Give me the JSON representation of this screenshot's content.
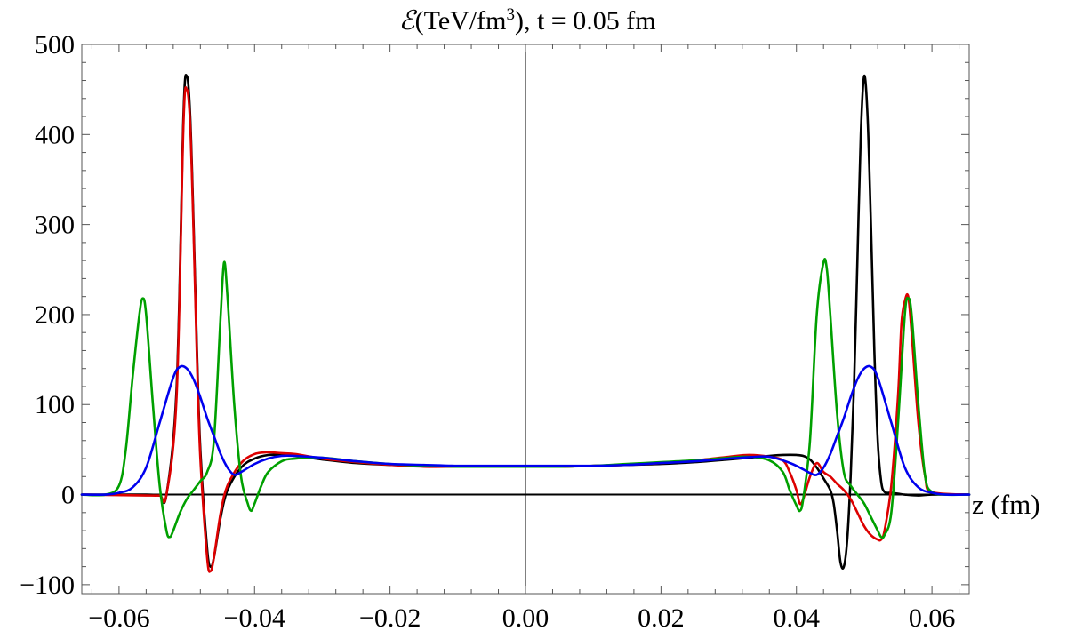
{
  "chart_data": {
    "type": "line",
    "title_prefix": "(TeV/fm",
    "title_symbol": "ℰ",
    "title_sup": "3",
    "title_suffix": "), t = 0.05 fm",
    "xlabel": "z (fm)",
    "ylabel": "",
    "xlim": [
      -0.0655,
      0.0655
    ],
    "ylim": [
      -110,
      500
    ],
    "xticks": [
      -0.06,
      -0.04,
      -0.02,
      0.0,
      0.02,
      0.04,
      0.06
    ],
    "xtick_labels": [
      "−0.06",
      "−0.04",
      "−0.02",
      "0.00",
      "0.02",
      "0.04",
      "0.06"
    ],
    "yticks": [
      -100,
      0,
      100,
      200,
      300,
      400,
      500
    ],
    "ytick_labels": [
      "−100",
      "0",
      "100",
      "200",
      "300",
      "400",
      "500"
    ],
    "grid": false,
    "legend": "none",
    "series": [
      {
        "color": "#000000",
        "x": [
          -0.0655,
          -0.056,
          -0.054,
          -0.053,
          -0.0515,
          -0.0505,
          -0.05,
          -0.0495,
          -0.049,
          -0.0485,
          -0.048,
          -0.047,
          -0.0465,
          -0.046,
          -0.045,
          -0.044,
          -0.042,
          -0.04,
          -0.038,
          -0.036,
          -0.034,
          -0.03,
          -0.025,
          -0.02,
          -0.015,
          -0.01,
          -0.005,
          0.0,
          0.005,
          0.01,
          0.015,
          0.02,
          0.025,
          0.03,
          0.033,
          0.036,
          0.038,
          0.04,
          0.041,
          0.042,
          0.043,
          0.044,
          0.045,
          0.0455,
          0.046,
          0.0465,
          0.047,
          0.0475,
          0.048,
          0.0485,
          0.049,
          0.0495,
          0.05,
          0.0505,
          0.051,
          0.0515,
          0.052,
          0.0525,
          0.053,
          0.054,
          0.055,
          0.056,
          0.058,
          0.06,
          0.0655
        ],
        "y": [
          0,
          0,
          -1,
          0,
          120,
          420,
          465,
          420,
          300,
          160,
          50,
          -60,
          -80,
          -70,
          -25,
          5,
          30,
          40,
          44,
          44,
          43,
          39,
          35,
          33,
          32,
          31,
          31,
          31,
          31,
          32,
          33,
          34,
          36,
          39,
          41,
          43,
          44,
          44,
          43,
          39,
          30,
          18,
          5,
          -10,
          -40,
          -75,
          -80,
          -50,
          20,
          120,
          260,
          400,
          465,
          420,
          300,
          160,
          60,
          15,
          3,
          2,
          1,
          0,
          -1,
          0,
          0
        ]
      },
      {
        "color": "#dd0000",
        "x": [
          -0.0655,
          -0.056,
          -0.054,
          -0.053,
          -0.0515,
          -0.0505,
          -0.05,
          -0.0495,
          -0.049,
          -0.0485,
          -0.048,
          -0.047,
          -0.0465,
          -0.046,
          -0.045,
          -0.044,
          -0.042,
          -0.04,
          -0.038,
          -0.036,
          -0.034,
          -0.03,
          -0.025,
          -0.02,
          -0.015,
          -0.01,
          -0.005,
          0.0,
          0.005,
          0.01,
          0.015,
          0.02,
          0.025,
          0.03,
          0.033,
          0.036,
          0.038,
          0.039,
          0.04,
          0.0405,
          0.041,
          0.042,
          0.043,
          0.044,
          0.045,
          0.046,
          0.047,
          0.048,
          0.049,
          0.05,
          0.051,
          0.052,
          0.0525,
          0.053,
          0.054,
          0.055,
          0.0555,
          0.056,
          0.0565,
          0.057,
          0.058,
          0.059,
          0.06,
          0.0655
        ],
        "y": [
          0,
          -1,
          -1,
          0,
          110,
          410,
          450,
          410,
          290,
          150,
          40,
          -70,
          -85,
          -70,
          -20,
          10,
          35,
          45,
          47,
          46,
          45,
          40,
          36,
          33,
          31,
          31,
          31,
          31,
          31,
          32,
          33,
          35,
          38,
          42,
          44,
          42,
          38,
          25,
          5,
          -10,
          -5,
          20,
          35,
          25,
          20,
          12,
          5,
          -5,
          -20,
          -35,
          -45,
          -50,
          -50,
          -40,
          10,
          110,
          190,
          215,
          220,
          180,
          80,
          20,
          3,
          0
        ]
      },
      {
        "color": "#00a000",
        "x": [
          -0.0655,
          -0.062,
          -0.06,
          -0.059,
          -0.058,
          -0.057,
          -0.0565,
          -0.056,
          -0.055,
          -0.054,
          -0.053,
          -0.0525,
          -0.052,
          -0.051,
          -0.05,
          -0.049,
          -0.048,
          -0.047,
          -0.046,
          -0.045,
          -0.0445,
          -0.044,
          -0.043,
          -0.042,
          -0.041,
          -0.0405,
          -0.04,
          -0.039,
          -0.038,
          -0.036,
          -0.034,
          -0.03,
          -0.025,
          -0.02,
          -0.015,
          -0.01,
          -0.005,
          0.0,
          0.005,
          0.01,
          0.015,
          0.02,
          0.025,
          0.03,
          0.033,
          0.036,
          0.038,
          0.039,
          0.04,
          0.0405,
          0.041,
          0.042,
          0.043,
          0.044,
          0.0445,
          0.045,
          0.046,
          0.047,
          0.048,
          0.049,
          0.05,
          0.051,
          0.052,
          0.0525,
          0.053,
          0.054,
          0.055,
          0.056,
          0.0565,
          0.057,
          0.058,
          0.059,
          0.06,
          0.062,
          0.0655
        ],
        "y": [
          0,
          0,
          10,
          50,
          130,
          200,
          218,
          200,
          100,
          10,
          -40,
          -47,
          -40,
          -20,
          -5,
          5,
          15,
          25,
          60,
          200,
          258,
          220,
          100,
          20,
          -10,
          -18,
          -10,
          10,
          25,
          37,
          40,
          41,
          37,
          34,
          32,
          31,
          31,
          31,
          31,
          32,
          34,
          36,
          38,
          41,
          42,
          38,
          25,
          5,
          -12,
          -18,
          -5,
          60,
          200,
          258,
          250,
          200,
          90,
          25,
          10,
          0,
          -10,
          -25,
          -40,
          -47,
          -45,
          -20,
          80,
          200,
          218,
          200,
          100,
          20,
          3,
          0,
          0
        ]
      },
      {
        "color": "#0000ee",
        "x": [
          -0.0655,
          -0.062,
          -0.06,
          -0.058,
          -0.056,
          -0.054,
          -0.052,
          -0.051,
          -0.05,
          -0.049,
          -0.048,
          -0.047,
          -0.046,
          -0.045,
          -0.044,
          -0.043,
          -0.042,
          -0.04,
          -0.038,
          -0.036,
          -0.034,
          -0.03,
          -0.025,
          -0.02,
          -0.015,
          -0.01,
          -0.005,
          0.0,
          0.005,
          0.01,
          0.015,
          0.02,
          0.025,
          0.03,
          0.034,
          0.036,
          0.038,
          0.04,
          0.042,
          0.043,
          0.044,
          0.045,
          0.046,
          0.047,
          0.048,
          0.049,
          0.05,
          0.051,
          0.052,
          0.054,
          0.056,
          0.058,
          0.06,
          0.062,
          0.0655
        ],
        "y": [
          0,
          0,
          2,
          8,
          30,
          80,
          130,
          142,
          140,
          128,
          108,
          85,
          65,
          45,
          30,
          22,
          25,
          34,
          40,
          43,
          43,
          41,
          37,
          34,
          33,
          32,
          32,
          32,
          32,
          32,
          33,
          35,
          37,
          40,
          42,
          42,
          38,
          32,
          24,
          22,
          30,
          45,
          65,
          85,
          108,
          128,
          140,
          142,
          130,
          80,
          30,
          8,
          2,
          0,
          0
        ]
      }
    ]
  }
}
